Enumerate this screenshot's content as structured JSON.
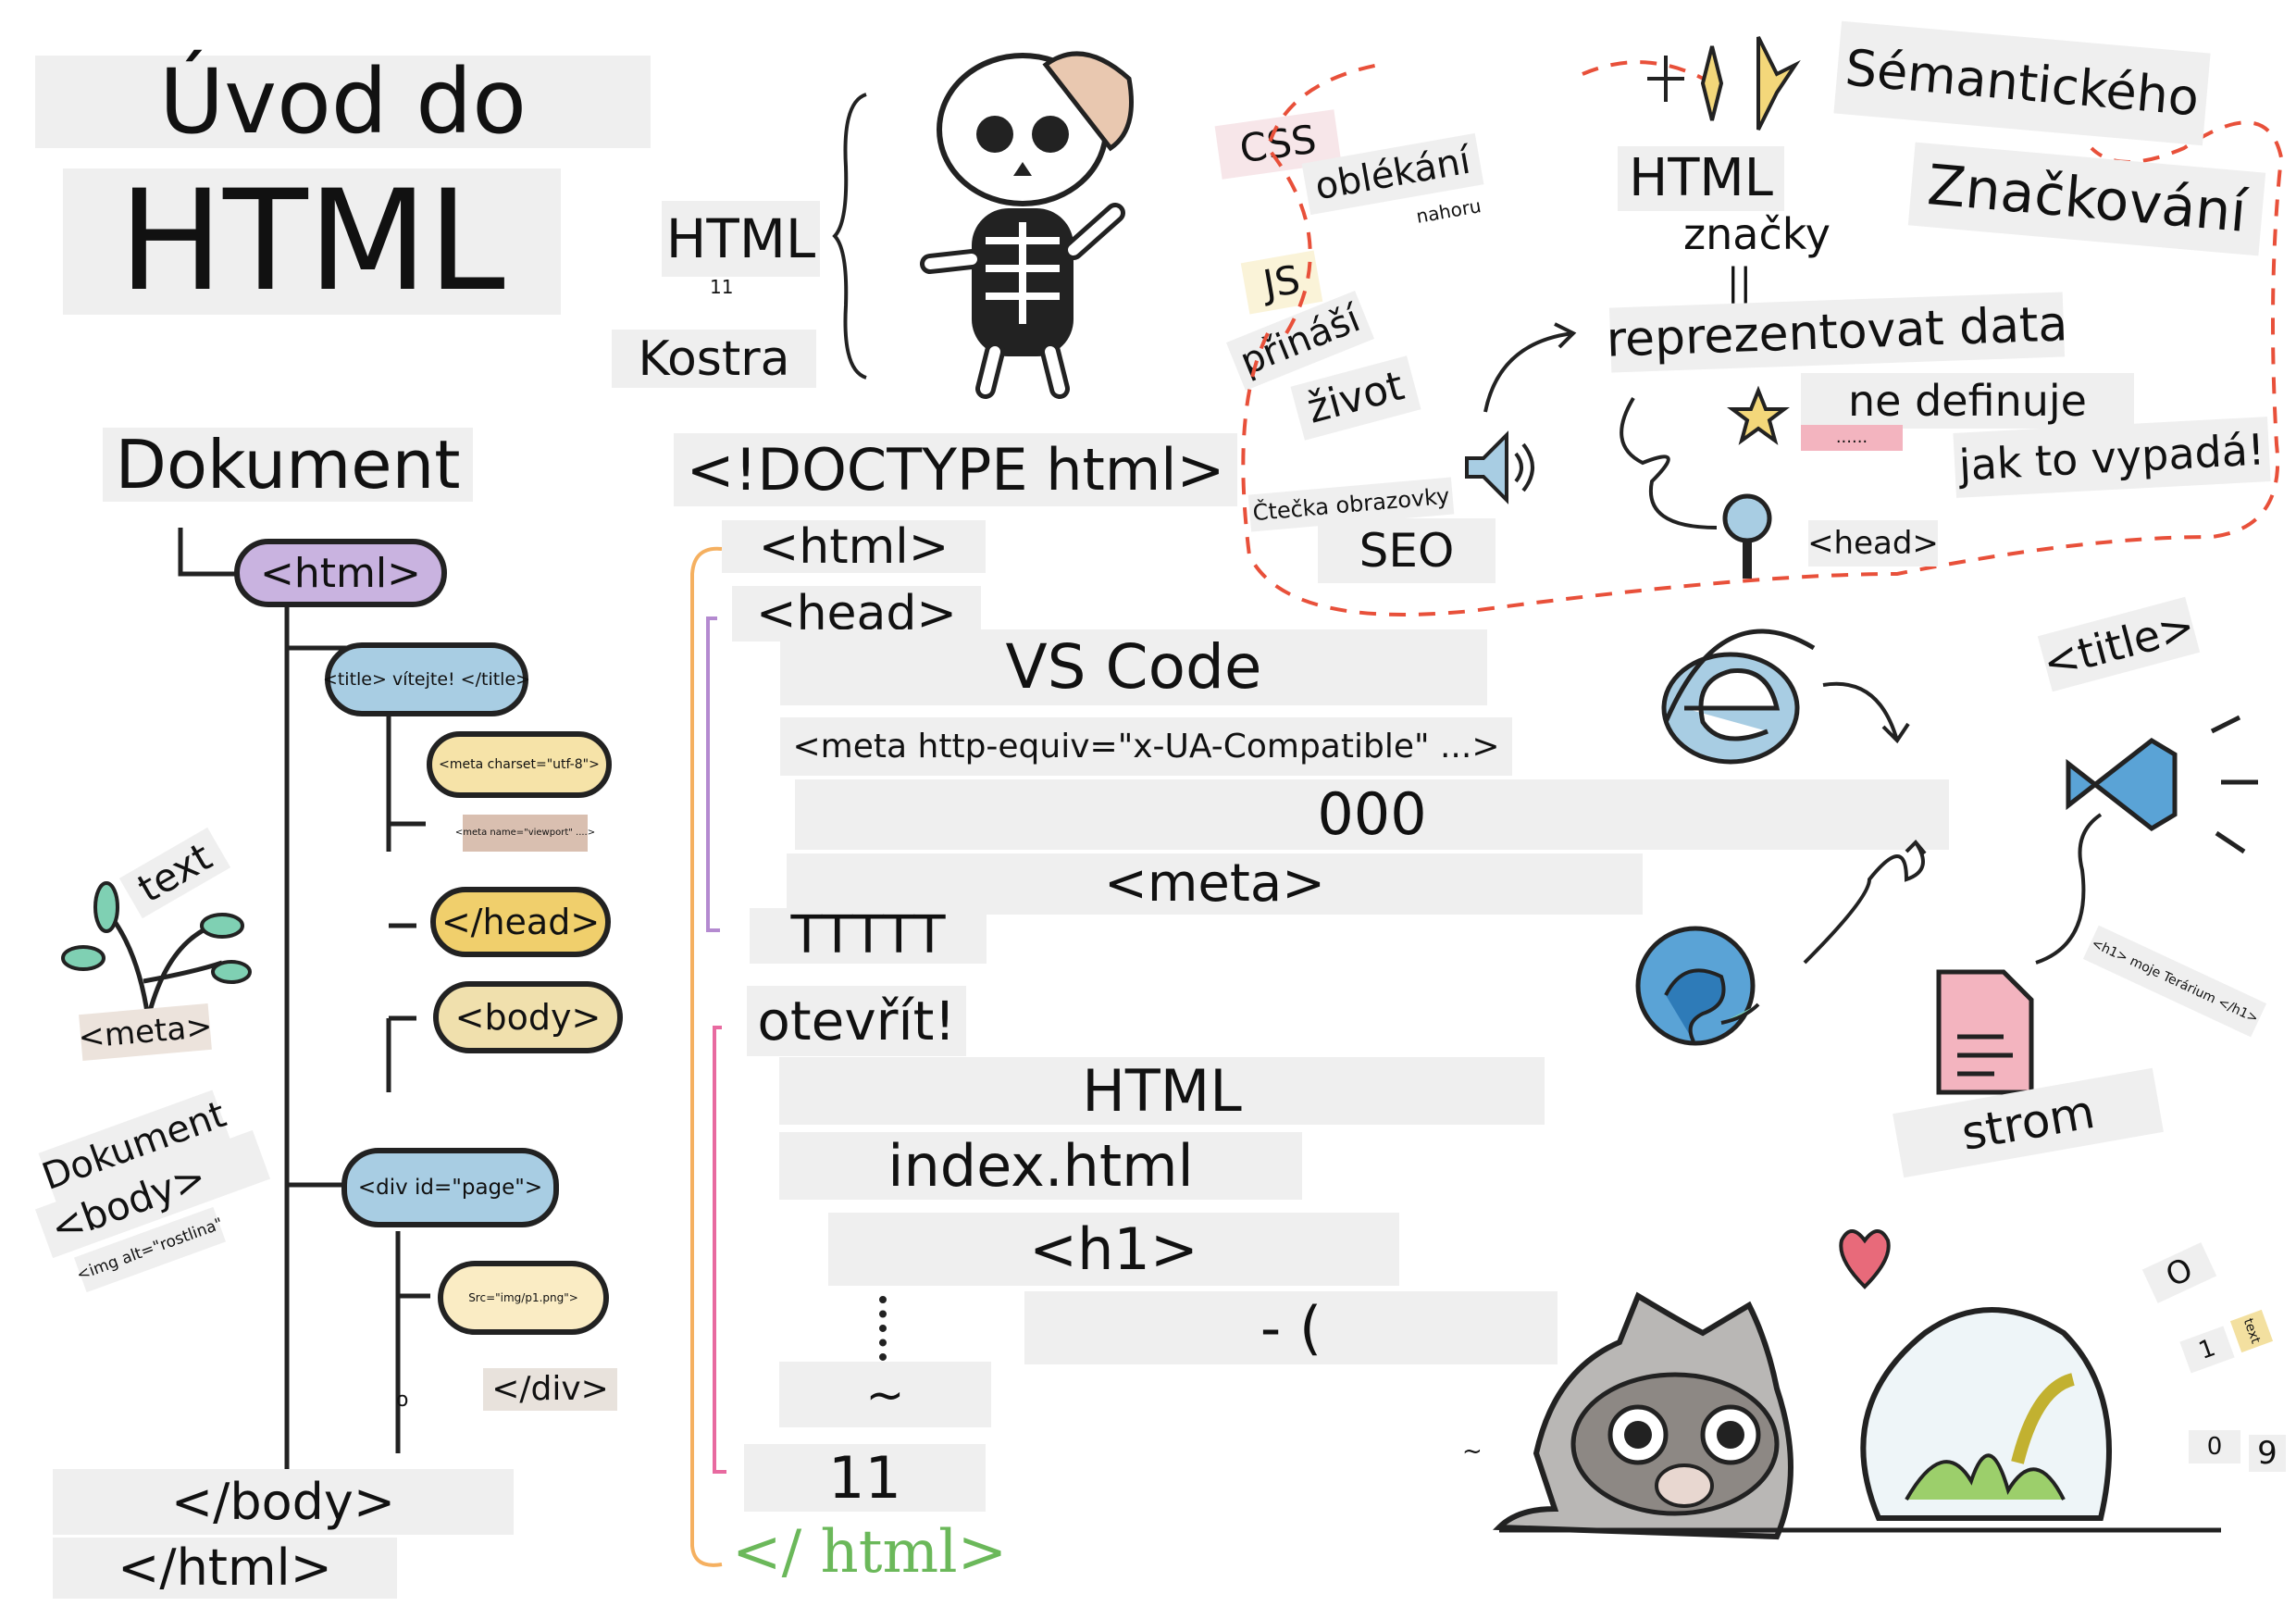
{
  "title": {
    "line1": "Úvod do",
    "line2": "HTML"
  },
  "skeleton": {
    "html": "HTML",
    "num": "11",
    "kostra": "Kostra",
    "css": "CSS",
    "oblekani": "oblékání",
    "nahoru": "nahoru",
    "js": "JS",
    "prinasi": "přináší",
    "zivot": "život"
  },
  "semantic": {
    "title1": "Sémantického",
    "title2": "Značkování",
    "html": "HTML",
    "znacky": "značky",
    "equals": "||",
    "reprezentovat": "reprezentovat data",
    "ne_definuje": "ne definuje",
    "dots": "......",
    "jak": "jak to vypadá!",
    "ctecka": "Čtečka obrazovky",
    "seo": "SEO",
    "head": "<head>"
  },
  "tree": {
    "heading": "Dokument",
    "html": "<html>",
    "title": "<title> vítejte! </title>",
    "meta_charset": "<meta charset=\"utf-8\">",
    "meta_viewport": "<meta name=\"viewport\" ....>",
    "head_close": "</head>",
    "body": "<body>",
    "div": "<div id=\"page\">",
    "img_src": "Src=\"img/p1.png\">",
    "div_close": "</div>",
    "o": "o",
    "body_close": "</body>",
    "html_close": "</html>"
  },
  "plant": {
    "text": "text",
    "meta": "<meta>",
    "dokument": "Dokument",
    "body": "<body>",
    "img_alt": "<img alt=\"rostlina\""
  },
  "code": {
    "doctype": "<!DOCTYPE html>",
    "html": "<html>",
    "head": "<head>",
    "vscode": "VS Code",
    "meta_http": "<meta http-equiv=\"x-UA-Compatible\" ...>",
    "zeros": "000",
    "meta": "<meta>",
    "ttttt": "TTTTT",
    "otevrit": "otevřít!",
    "html2": "HTML",
    "index": "index.html",
    "h1": "<h1>",
    "dash": "- (",
    "tilde": "~",
    "eleven": "11",
    "html_close_hand": "</ html>"
  },
  "right": {
    "title_tag": "<title>",
    "strom": "strom",
    "h1_tag": "<h1> moje Terárium </h1>",
    "o1": "O",
    "one": "1",
    "text": "text",
    "zero": "0",
    "nine": "9",
    "tilde": "~"
  },
  "colors": {
    "accent_red": "#e8503a",
    "blue": "#a8cde3",
    "yellow": "#f3d77a",
    "purple": "#c9b3e0",
    "green": "#6bb85a",
    "orange": "#f5b060",
    "pink": "#e86aa0"
  }
}
